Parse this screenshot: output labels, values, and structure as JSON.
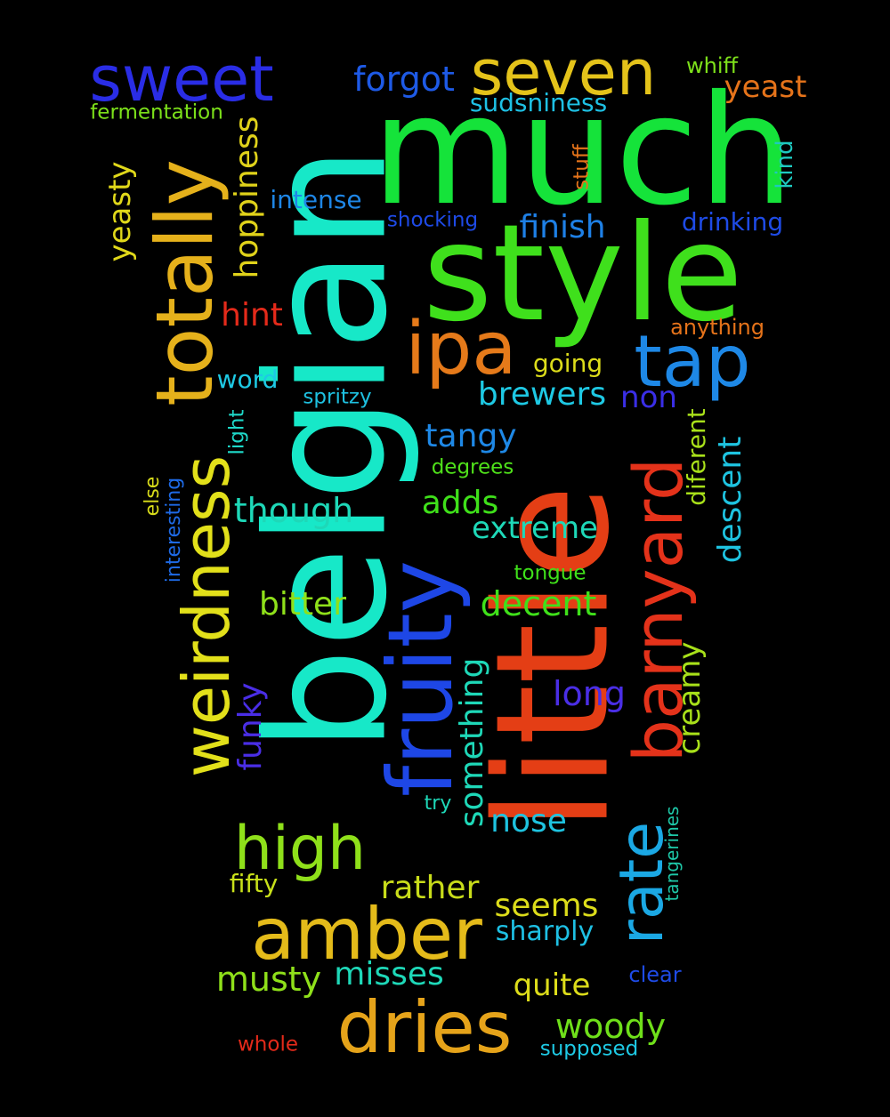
{
  "words": [
    {
      "text": "much",
      "color": "#15e33a"
    },
    {
      "text": "belgian",
      "color": "#17e8c8"
    },
    {
      "text": "little",
      "color": "#e43e15"
    },
    {
      "text": "style",
      "color": "#3fe01c"
    },
    {
      "text": "fruity",
      "color": "#1e47e6"
    },
    {
      "text": "totally",
      "color": "#e5b11b"
    },
    {
      "text": "weirdness",
      "color": "#e2e01a"
    },
    {
      "text": "barnyard",
      "color": "#e4321a"
    },
    {
      "text": "ipa",
      "color": "#e57a1a"
    },
    {
      "text": "tap",
      "color": "#1e88e6"
    },
    {
      "text": "seven",
      "color": "#e4c31a"
    },
    {
      "text": "sweet",
      "color": "#2a2de6"
    },
    {
      "text": "amber",
      "color": "#e4bb1a"
    },
    {
      "text": "dries",
      "color": "#e5a31a"
    },
    {
      "text": "high",
      "color": "#8fe01a"
    },
    {
      "text": "rate",
      "color": "#1ba8e4"
    },
    {
      "text": "forgot",
      "color": "#1e5ae6"
    },
    {
      "text": "hoppiness",
      "color": "#e0d21a"
    },
    {
      "text": "yeasty",
      "color": "#e0d81a"
    },
    {
      "text": "finish",
      "color": "#1e80e6"
    },
    {
      "text": "drinking",
      "color": "#1e4be6"
    },
    {
      "text": "yeast",
      "color": "#e5731a"
    },
    {
      "text": "whiff",
      "color": "#7de01a"
    },
    {
      "text": "fermentation",
      "color": "#7ce01a"
    },
    {
      "text": "sudsniness",
      "color": "#1ec0e4"
    },
    {
      "text": "intense",
      "color": "#1e86e6"
    },
    {
      "text": "shocking",
      "color": "#1e4ae6"
    },
    {
      "text": "stuff",
      "color": "#e5731a"
    },
    {
      "text": "kind",
      "color": "#1ec9c0"
    },
    {
      "text": "hint",
      "color": "#e42a1a"
    },
    {
      "text": "anything",
      "color": "#e5731a"
    },
    {
      "text": "going",
      "color": "#dcdc1a"
    },
    {
      "text": "word",
      "color": "#1ec9e4"
    },
    {
      "text": "spritzy",
      "color": "#1ec0e0"
    },
    {
      "text": "brewers",
      "color": "#1ec9e4"
    },
    {
      "text": "non",
      "color": "#3a2ee6"
    },
    {
      "text": "tangy",
      "color": "#1e88e6"
    },
    {
      "text": "light",
      "color": "#1ed8c8"
    },
    {
      "text": "degrees",
      "color": "#4fe01a"
    },
    {
      "text": "diferent",
      "color": "#a8e01a"
    },
    {
      "text": "descent",
      "color": "#1ec3e0"
    },
    {
      "text": "else",
      "color": "#d8dc1a"
    },
    {
      "text": "interesting",
      "color": "#1e6ae6"
    },
    {
      "text": "though",
      "color": "#1ed8b8"
    },
    {
      "text": "adds",
      "color": "#3fe01a"
    },
    {
      "text": "extreme",
      "color": "#1ed8b8"
    },
    {
      "text": "tongue",
      "color": "#3fe01a"
    },
    {
      "text": "bitter",
      "color": "#8fe01a"
    },
    {
      "text": "decent",
      "color": "#3fe01a"
    },
    {
      "text": "funky",
      "color": "#4a2ee6"
    },
    {
      "text": "something",
      "color": "#1ed8b8"
    },
    {
      "text": "long",
      "color": "#4a2ee6"
    },
    {
      "text": "creamy",
      "color": "#a8e01a"
    },
    {
      "text": "try",
      "color": "#1ed8b8"
    },
    {
      "text": "nose",
      "color": "#1ec3e0"
    },
    {
      "text": "tangerines",
      "color": "#1ec8a8"
    },
    {
      "text": "fifty",
      "color": "#c8e01a"
    },
    {
      "text": "rather",
      "color": "#c8dc1a"
    },
    {
      "text": "seems",
      "color": "#dcdc1a"
    },
    {
      "text": "sharply",
      "color": "#1ec0e4"
    },
    {
      "text": "musty",
      "color": "#8fe01a"
    },
    {
      "text": "misses",
      "color": "#1ed8b8"
    },
    {
      "text": "quite",
      "color": "#dcdc1a"
    },
    {
      "text": "clear",
      "color": "#1e4be6"
    },
    {
      "text": "woody",
      "color": "#6fe01a"
    },
    {
      "text": "whole",
      "color": "#e42a1a"
    },
    {
      "text": "supposed",
      "color": "#1ec9e4"
    }
  ]
}
